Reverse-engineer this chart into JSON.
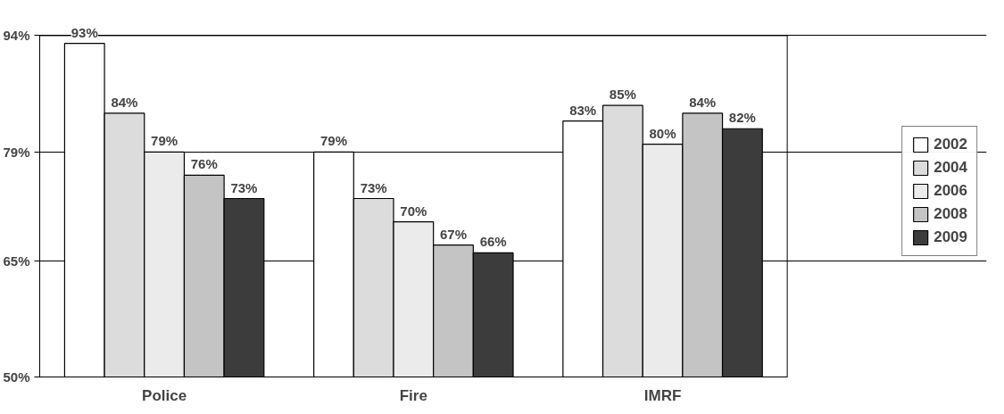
{
  "chart_data": {
    "type": "bar",
    "categories": [
      "Police",
      "Fire",
      "IMRF"
    ],
    "series": [
      {
        "name": "2002",
        "color": "#ffffff",
        "values": [
          93,
          79,
          83
        ],
        "value_labels": [
          "93%",
          "79%",
          "83%"
        ]
      },
      {
        "name": "2004",
        "color": "#dcdcdc",
        "values": [
          84,
          73,
          85
        ],
        "value_labels": [
          "84%",
          "73%",
          "85%"
        ]
      },
      {
        "name": "2006",
        "color": "#ebebeb",
        "values": [
          79,
          70,
          80
        ],
        "value_labels": [
          "79%",
          "70%",
          "80%"
        ]
      },
      {
        "name": "2008",
        "color": "#c4c4c4",
        "values": [
          76,
          67,
          84
        ],
        "value_labels": [
          "76%",
          "67%",
          "84%"
        ]
      },
      {
        "name": "2009",
        "color": "#3c3c3c",
        "values": [
          73,
          66,
          82
        ],
        "value_labels": [
          "73%",
          "66%",
          "82%"
        ]
      }
    ],
    "ylim": [
      50,
      94
    ],
    "yticks": [
      {
        "value": 50,
        "label": "50%"
      },
      {
        "value": 65,
        "label": "65%"
      },
      {
        "value": 79,
        "label": "79%"
      },
      {
        "value": 94,
        "label": "94%"
      }
    ],
    "grid": "y",
    "legend": "right"
  }
}
